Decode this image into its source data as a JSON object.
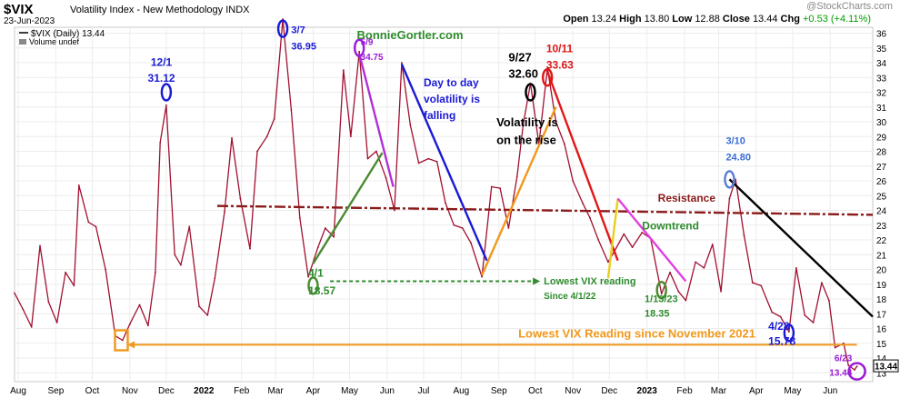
{
  "header": {
    "ticker": "$VIX",
    "subtitle": "Volatility Index - New Methodology  INDX",
    "date": "23-Jun-2023",
    "watermark": "@StockCharts.com",
    "ohlc": {
      "open_label": "Open",
      "open": "13.24",
      "high_label": "High",
      "high": "13.80",
      "low_label": "Low",
      "low": "12.88",
      "close_label": "Close",
      "close": "13.44",
      "chg_label": "Chg",
      "chg": "+0.53 (+4.11%)"
    }
  },
  "legend": {
    "series_label": "$VIX (Daily) 13.44",
    "volume_label": "Volume undef"
  },
  "chart_data": {
    "type": "line",
    "ylim": [
      12.4,
      36.4
    ],
    "yticks": [
      13,
      14,
      15,
      16,
      17,
      18,
      19,
      20,
      21,
      22,
      23,
      24,
      25,
      26,
      27,
      28,
      29,
      30,
      31,
      32,
      33,
      34,
      35,
      36
    ],
    "y_tick_labels": [
      "13",
      "14",
      "15",
      "16",
      "17",
      "18",
      "19",
      "20",
      "21",
      "22",
      "23",
      "24",
      "25",
      "26",
      "27",
      "28",
      "29",
      "30",
      "31",
      "32",
      "33",
      "34",
      "35",
      "36"
    ],
    "x_tick_labels": [
      "Aug",
      "Sep",
      "Oct",
      "Nov",
      "Dec",
      "2022",
      "Feb",
      "Mar",
      "Apr",
      "May",
      "Jun",
      "Jul",
      "Aug",
      "Sep",
      "Oct",
      "Nov",
      "Dec",
      "2023",
      "Feb",
      "Mar",
      "Apr",
      "May",
      "Jun"
    ],
    "x_tick_dates": [
      "2021-08-01",
      "2021-09-01",
      "2021-10-01",
      "2021-11-01",
      "2021-12-01",
      "2022-01-01",
      "2022-02-01",
      "2022-03-01",
      "2022-04-01",
      "2022-05-01",
      "2022-06-01",
      "2022-07-01",
      "2022-08-01",
      "2022-09-01",
      "2022-10-01",
      "2022-11-01",
      "2022-12-01",
      "2023-01-01",
      "2023-02-01",
      "2023-03-01",
      "2023-04-01",
      "2023-05-01",
      "2023-06-01"
    ],
    "x_range": [
      "2021-07-29",
      "2023-07-06"
    ],
    "last_value_label": "13.44",
    "series": [
      {
        "color": "#a01030",
        "points": [
          [
            "2021-07-29",
            18.4
          ],
          [
            "2021-08-05",
            17.3
          ],
          [
            "2021-08-12",
            16.1
          ],
          [
            "2021-08-19",
            21.6
          ],
          [
            "2021-08-26",
            17.8
          ],
          [
            "2021-09-02",
            16.4
          ],
          [
            "2021-09-09",
            19.8
          ],
          [
            "2021-09-16",
            18.9
          ],
          [
            "2021-09-20",
            25.7
          ],
          [
            "2021-09-28",
            23.2
          ],
          [
            "2021-10-04",
            22.9
          ],
          [
            "2021-10-12",
            20.0
          ],
          [
            "2021-10-20",
            15.5
          ],
          [
            "2021-10-26",
            15.2
          ],
          [
            "2021-11-01",
            16.3
          ],
          [
            "2021-11-09",
            17.6
          ],
          [
            "2021-11-16",
            16.2
          ],
          [
            "2021-11-22",
            19.8
          ],
          [
            "2021-11-26",
            28.6
          ],
          [
            "2021-12-01",
            31.12
          ],
          [
            "2021-12-08",
            21.0
          ],
          [
            "2021-12-13",
            20.3
          ],
          [
            "2021-12-20",
            22.9
          ],
          [
            "2021-12-28",
            17.5
          ],
          [
            "2022-01-04",
            16.9
          ],
          [
            "2022-01-10",
            19.4
          ],
          [
            "2022-01-18",
            23.9
          ],
          [
            "2022-01-24",
            28.9
          ],
          [
            "2022-01-31",
            24.8
          ],
          [
            "2022-02-08",
            21.4
          ],
          [
            "2022-02-14",
            28.0
          ],
          [
            "2022-02-22",
            29.0
          ],
          [
            "2022-02-28",
            30.2
          ],
          [
            "2022-03-07",
            36.95
          ],
          [
            "2022-03-14",
            30.8
          ],
          [
            "2022-03-21",
            23.5
          ],
          [
            "2022-03-28",
            19.5
          ],
          [
            "2022-04-05",
            21.5
          ],
          [
            "2022-04-11",
            22.8
          ],
          [
            "2022-04-18",
            22.2
          ],
          [
            "2022-04-26",
            33.5
          ],
          [
            "2022-05-02",
            29.0
          ],
          [
            "2022-05-09",
            34.75
          ],
          [
            "2022-05-16",
            27.5
          ],
          [
            "2022-05-23",
            28.0
          ],
          [
            "2022-05-31",
            26.2
          ],
          [
            "2022-06-07",
            24.0
          ],
          [
            "2022-06-13",
            34.0
          ],
          [
            "2022-06-20",
            29.8
          ],
          [
            "2022-06-27",
            27.2
          ],
          [
            "2022-07-05",
            27.5
          ],
          [
            "2022-07-12",
            27.3
          ],
          [
            "2022-07-19",
            24.5
          ],
          [
            "2022-07-26",
            23.0
          ],
          [
            "2022-08-02",
            22.8
          ],
          [
            "2022-08-09",
            21.8
          ],
          [
            "2022-08-18",
            19.5
          ],
          [
            "2022-08-26",
            25.6
          ],
          [
            "2022-09-02",
            25.5
          ],
          [
            "2022-09-09",
            22.8
          ],
          [
            "2022-09-16",
            26.3
          ],
          [
            "2022-09-21",
            29.8
          ],
          [
            "2022-09-27",
            32.6
          ],
          [
            "2022-10-04",
            28.5
          ],
          [
            "2022-10-11",
            33.63
          ],
          [
            "2022-10-18",
            30.0
          ],
          [
            "2022-10-25",
            28.5
          ],
          [
            "2022-11-01",
            26.0
          ],
          [
            "2022-11-09",
            24.5
          ],
          [
            "2022-11-15",
            23.5
          ],
          [
            "2022-11-22",
            22.0
          ],
          [
            "2022-11-30",
            20.5
          ],
          [
            "2022-12-05",
            21.2
          ],
          [
            "2022-12-13",
            22.4
          ],
          [
            "2022-12-20",
            21.5
          ],
          [
            "2022-12-28",
            22.5
          ],
          [
            "2023-01-04",
            22.1
          ],
          [
            "2023-01-13",
            18.35
          ],
          [
            "2023-01-20",
            19.8
          ],
          [
            "2023-01-27",
            18.5
          ],
          [
            "2023-02-02",
            17.9
          ],
          [
            "2023-02-10",
            20.5
          ],
          [
            "2023-02-17",
            20.1
          ],
          [
            "2023-02-24",
            21.7
          ],
          [
            "2023-03-03",
            18.5
          ],
          [
            "2023-03-10",
            24.8
          ],
          [
            "2023-03-15",
            26.1
          ],
          [
            "2023-03-22",
            22.3
          ],
          [
            "2023-03-29",
            19.1
          ],
          [
            "2023-04-05",
            18.9
          ],
          [
            "2023-04-14",
            17.1
          ],
          [
            "2023-04-21",
            16.8
          ],
          [
            "2023-04-28",
            15.78
          ],
          [
            "2023-05-04",
            20.1
          ],
          [
            "2023-05-11",
            16.9
          ],
          [
            "2023-05-18",
            16.4
          ],
          [
            "2023-05-25",
            19.1
          ],
          [
            "2023-05-31",
            17.9
          ],
          [
            "2023-06-05",
            14.7
          ],
          [
            "2023-06-12",
            15.0
          ],
          [
            "2023-06-16",
            13.5
          ],
          [
            "2023-06-21",
            13.2
          ],
          [
            "2023-06-23",
            13.44
          ]
        ]
      }
    ],
    "annotations": [
      {
        "text": "BonnieGortler.com",
        "color": "#2e8b2e",
        "size": 13,
        "bold": true,
        "x": "2022-05-07",
        "y": 35.6,
        "anchor": "start"
      },
      {
        "text": "12/1",
        "color": "#1a1ad6",
        "size": 12,
        "bold": true,
        "x": "2021-11-27",
        "y": 33.8,
        "anchor": "middle"
      },
      {
        "text": "31.12",
        "color": "#1a1ad6",
        "size": 12,
        "bold": true,
        "x": "2021-11-27",
        "y": 32.7,
        "anchor": "middle"
      },
      {
        "text": "3/7",
        "color": "#1a1ad6",
        "size": 11,
        "bold": true,
        "x": "2022-03-14",
        "y": 36.0,
        "anchor": "start"
      },
      {
        "text": "36.95",
        "color": "#1a1ad6",
        "size": 11,
        "bold": true,
        "x": "2022-03-14",
        "y": 34.9,
        "anchor": "start"
      },
      {
        "text": "5/9",
        "color": "#9b1bd6",
        "size": 10,
        "bold": true,
        "x": "2022-05-10",
        "y": 35.2,
        "anchor": "start"
      },
      {
        "text": "34.75",
        "color": "#9b1bd6",
        "size": 10,
        "bold": true,
        "x": "2022-05-10",
        "y": 34.2,
        "anchor": "start"
      },
      {
        "text": "Day to day",
        "color": "#1a1ad6",
        "size": 12,
        "bold": true,
        "x": "2022-07-01",
        "y": 32.4,
        "anchor": "start"
      },
      {
        "text": "volatility is",
        "color": "#1a1ad6",
        "size": 12,
        "bold": true,
        "x": "2022-07-01",
        "y": 31.3,
        "anchor": "start"
      },
      {
        "text": "falling",
        "color": "#1a1ad6",
        "size": 12,
        "bold": true,
        "x": "2022-07-01",
        "y": 30.2,
        "anchor": "start"
      },
      {
        "text": "9/27",
        "color": "#000000",
        "size": 13,
        "bold": true,
        "x": "2022-09-09",
        "y": 34.1,
        "anchor": "start"
      },
      {
        "text": "32.60",
        "color": "#000000",
        "size": 13,
        "bold": true,
        "x": "2022-09-09",
        "y": 33.0,
        "anchor": "start"
      },
      {
        "text": "10/11",
        "color": "#dd1818",
        "size": 12,
        "bold": true,
        "x": "2022-10-10",
        "y": 34.7,
        "anchor": "start"
      },
      {
        "text": "33.63",
        "color": "#dd1818",
        "size": 12,
        "bold": true,
        "x": "2022-10-10",
        "y": 33.6,
        "anchor": "start"
      },
      {
        "text": "Volatility is",
        "color": "#000000",
        "size": 13,
        "bold": true,
        "x": "2022-08-30",
        "y": 29.7,
        "anchor": "start"
      },
      {
        "text": "on the rise",
        "color": "#000000",
        "size": 13,
        "bold": true,
        "x": "2022-08-30",
        "y": 28.5,
        "anchor": "start"
      },
      {
        "text": "3/10",
        "color": "#3a6ed6",
        "size": 11,
        "bold": true,
        "x": "2023-03-07",
        "y": 28.5,
        "anchor": "start"
      },
      {
        "text": "24.80",
        "color": "#3a6ed6",
        "size": 11,
        "bold": true,
        "x": "2023-03-07",
        "y": 27.4,
        "anchor": "start"
      },
      {
        "text": "Resistance",
        "color": "#8b1a1a",
        "size": 12,
        "bold": true,
        "x": "2023-01-10",
        "y": 24.6,
        "anchor": "start"
      },
      {
        "text": "Downtrend",
        "color": "#2e8b2e",
        "size": 12,
        "bold": true,
        "x": "2022-12-28",
        "y": 22.7,
        "anchor": "start"
      },
      {
        "text": "4/1",
        "color": "#2e8b2e",
        "size": 12,
        "bold": true,
        "x": "2022-03-28",
        "y": 19.5,
        "anchor": "start"
      },
      {
        "text": "18.57",
        "color": "#2e8b2e",
        "size": 12,
        "bold": true,
        "x": "2022-03-28",
        "y": 18.3,
        "anchor": "start"
      },
      {
        "text": "Lowest VIX reading",
        "color": "#2e8b2e",
        "size": 11,
        "bold": true,
        "x": "2022-10-08",
        "y": 19.0,
        "anchor": "start"
      },
      {
        "text": "Since 4/1/22",
        "color": "#2e8b2e",
        "size": 10,
        "bold": true,
        "x": "2022-10-08",
        "y": 18.0,
        "anchor": "start"
      },
      {
        "text": "1/13/23",
        "color": "#2e8b2e",
        "size": 11,
        "bold": true,
        "x": "2022-12-30",
        "y": 17.8,
        "anchor": "start"
      },
      {
        "text": "18.35",
        "color": "#2e8b2e",
        "size": 11,
        "bold": true,
        "x": "2022-12-30",
        "y": 16.8,
        "anchor": "start"
      },
      {
        "text": "4/28",
        "color": "#1a1ad6",
        "size": 12,
        "bold": true,
        "x": "2023-04-11",
        "y": 15.9,
        "anchor": "start"
      },
      {
        "text": "15.78",
        "color": "#1a1ad6",
        "size": 12,
        "bold": true,
        "x": "2023-04-11",
        "y": 14.9,
        "anchor": "start"
      },
      {
        "text": "Lowest VIX Reading since November 2021",
        "color": "#f0981c",
        "size": 13,
        "bold": true,
        "x": "2022-09-17",
        "y": 15.4,
        "anchor": "start"
      },
      {
        "text": "6/23",
        "color": "#9b1bd6",
        "size": 10,
        "bold": true,
        "x": "2023-06-19",
        "y": 13.8,
        "anchor": "end"
      },
      {
        "text": "13.44",
        "color": "#9b1bd6",
        "size": 10,
        "bold": true,
        "x": "2023-06-19",
        "y": 12.8,
        "anchor": "end"
      }
    ],
    "trend_lines": [
      {
        "name": "resistance-line",
        "color": "#8b1a1a",
        "dash": true,
        "from": [
          "2022-01-12",
          24.3
        ],
        "to": [
          "2023-07-06",
          23.7
        ]
      },
      {
        "name": "green-rise-line",
        "color": "#4a8b2e",
        "from": [
          "2022-04-01",
          20.4
        ],
        "to": [
          "2022-05-28",
          27.9
        ]
      },
      {
        "name": "purple-fall-line",
        "color": "#b030d6",
        "from": [
          "2022-05-09",
          34.6
        ],
        "to": [
          "2022-06-06",
          25.6
        ]
      },
      {
        "name": "blue-fall-line",
        "color": "#1a1ad6",
        "from": [
          "2022-06-13",
          33.9
        ],
        "to": [
          "2022-08-22",
          20.6
        ]
      },
      {
        "name": "orange-rise-line",
        "color": "#f0981c",
        "from": [
          "2022-08-18",
          19.6
        ],
        "to": [
          "2022-10-18",
          31.0
        ]
      },
      {
        "name": "red-fall-line",
        "color": "#e01818",
        "from": [
          "2022-10-11",
          33.4
        ],
        "to": [
          "2022-12-08",
          20.6
        ]
      },
      {
        "name": "yellow-rise-line",
        "color": "#e8d020",
        "from": [
          "2022-11-30",
          19.4
        ],
        "to": [
          "2022-12-08",
          24.8
        ]
      },
      {
        "name": "magenta-fall-line",
        "color": "#e040e0",
        "from": [
          "2022-12-08",
          24.8
        ],
        "to": [
          "2023-02-02",
          19.2
        ]
      },
      {
        "name": "black-fall-line",
        "color": "#000000",
        "from": [
          "2023-03-10",
          26.1
        ],
        "to": [
          "2023-07-06",
          16.8
        ]
      }
    ],
    "arrows": [
      {
        "name": "green-dotted-arrow",
        "color": "#2e8b2e",
        "dash": true,
        "from": [
          "2022-04-15",
          19.2
        ],
        "to": [
          "2022-10-05",
          19.2
        ]
      },
      {
        "name": "orange-arrow",
        "color": "#f0981c",
        "from": [
          "2023-06-23",
          14.9
        ],
        "to": [
          "2021-10-30",
          14.9
        ]
      }
    ],
    "markers": [
      {
        "name": "marker-12-1",
        "shape": "ellipse",
        "color": "#1a1ad6",
        "x": "2021-12-01",
        "y": 32.0
      },
      {
        "name": "marker-3-7",
        "shape": "ellipse",
        "color": "#1a1ad6",
        "x": "2022-03-07",
        "y": 36.3
      },
      {
        "name": "marker-5-9",
        "shape": "ellipse",
        "color": "#9b1bd6",
        "x": "2022-05-09",
        "y": 35.0
      },
      {
        "name": "marker-9-27",
        "shape": "ellipse",
        "color": "#000000",
        "x": "2022-09-27",
        "y": 32.0
      },
      {
        "name": "marker-10-11",
        "shape": "ellipse",
        "color": "#dd1818",
        "x": "2022-10-11",
        "y": 33.0
      },
      {
        "name": "marker-3-10",
        "shape": "ellipse",
        "color": "#5b7fd6",
        "x": "2023-03-10",
        "y": 26.1
      },
      {
        "name": "marker-4-1",
        "shape": "ellipse",
        "color": "#4a8b2e",
        "x": "2022-04-01",
        "y": 18.9
      },
      {
        "name": "marker-1-13",
        "shape": "ellipse",
        "color": "#4a8b2e",
        "x": "2023-01-13",
        "y": 18.6
      },
      {
        "name": "marker-4-28",
        "shape": "ellipse",
        "color": "#1a1ad6",
        "x": "2023-04-28",
        "y": 15.7
      },
      {
        "name": "marker-6-23",
        "shape": "circle",
        "color": "#9b1bd6",
        "x": "2023-06-23",
        "y": 13.1
      },
      {
        "name": "marker-oct-low",
        "shape": "square",
        "color": "#f0981c",
        "x": "2021-10-25",
        "y": 15.2
      }
    ]
  }
}
